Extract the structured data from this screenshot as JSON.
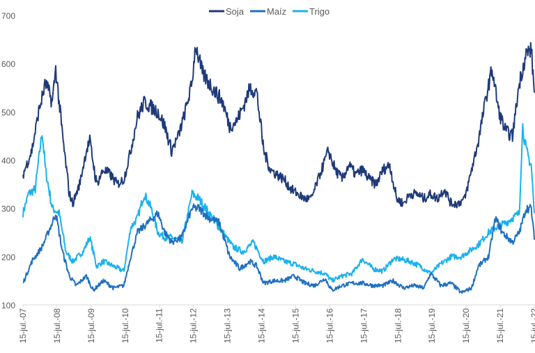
{
  "chart_data": {
    "type": "line",
    "title": "",
    "xlabel": "",
    "ylabel": "",
    "ylim": [
      100,
      700
    ],
    "yticks": [
      "100",
      "200",
      "300",
      "400",
      "500",
      "600",
      "700"
    ],
    "xlim": [
      2007.54,
      2022.54
    ],
    "xtick_labels": [
      "15-jul.-07",
      "15-jul.-08",
      "15-jul.-09",
      "15-jul.-10",
      "15-jul.-11",
      "15-jul.-12",
      "15-jul.-13",
      "15-jul.-14",
      "15-jul.-15",
      "15-jul.-16",
      "15-jul.-17",
      "15-jul.-18",
      "15-jul.-19",
      "15-jul.-20",
      "15-jul.-21",
      "15-jul.-22"
    ],
    "legend_position": "top-center",
    "series": [
      {
        "name": "Soja",
        "color": "#1f3a7a",
        "x": [
          2007.54,
          2007.8,
          2008.0,
          2008.2,
          2008.4,
          2008.5,
          2008.7,
          2008.9,
          2009.0,
          2009.2,
          2009.4,
          2009.5,
          2009.7,
          2009.9,
          2010.1,
          2010.3,
          2010.5,
          2010.7,
          2010.9,
          2011.1,
          2011.3,
          2011.5,
          2011.7,
          2011.9,
          2012.1,
          2012.3,
          2012.5,
          2012.6,
          2012.8,
          2013.0,
          2013.2,
          2013.4,
          2013.6,
          2013.8,
          2014.0,
          2014.2,
          2014.4,
          2014.6,
          2014.8,
          2015.0,
          2015.2,
          2015.4,
          2015.6,
          2015.8,
          2016.0,
          2016.3,
          2016.5,
          2016.7,
          2016.9,
          2017.1,
          2017.3,
          2017.5,
          2017.7,
          2017.9,
          2018.1,
          2018.3,
          2018.5,
          2018.7,
          2018.9,
          2019.1,
          2019.3,
          2019.5,
          2019.7,
          2019.9,
          2020.1,
          2020.3,
          2020.5,
          2020.7,
          2020.9,
          2021.1,
          2021.3,
          2021.5,
          2021.7,
          2021.9,
          2022.1,
          2022.3,
          2022.45,
          2022.54
        ],
        "values": [
          370,
          420,
          500,
          560,
          520,
          590,
          450,
          330,
          310,
          350,
          420,
          440,
          350,
          380,
          370,
          350,
          360,
          420,
          490,
          520,
          510,
          500,
          470,
          420,
          450,
          500,
          560,
          640,
          580,
          560,
          540,
          520,
          470,
          480,
          510,
          550,
          540,
          420,
          380,
          370,
          360,
          340,
          330,
          320,
          320,
          380,
          420,
          380,
          360,
          390,
          370,
          380,
          360,
          350,
          380,
          390,
          320,
          310,
          330,
          330,
          320,
          330,
          320,
          340,
          310,
          310,
          320,
          380,
          440,
          520,
          590,
          500,
          460,
          450,
          560,
          620,
          630,
          540
        ]
      },
      {
        "name": "Maíz",
        "color": "#1f6fc0",
        "x": [
          2007.54,
          2007.8,
          2008.1,
          2008.4,
          2008.5,
          2008.7,
          2008.9,
          2009.1,
          2009.4,
          2009.6,
          2009.9,
          2010.2,
          2010.5,
          2010.7,
          2010.9,
          2011.2,
          2011.5,
          2011.7,
          2011.9,
          2012.2,
          2012.5,
          2012.7,
          2013.0,
          2013.3,
          2013.6,
          2013.9,
          2014.2,
          2014.4,
          2014.6,
          2014.9,
          2015.2,
          2015.5,
          2015.8,
          2016.1,
          2016.4,
          2016.6,
          2016.9,
          2017.2,
          2017.5,
          2017.8,
          2018.1,
          2018.4,
          2018.7,
          2019.0,
          2019.3,
          2019.5,
          2019.8,
          2020.1,
          2020.4,
          2020.7,
          2020.9,
          2021.2,
          2021.4,
          2021.6,
          2021.9,
          2022.1,
          2022.3,
          2022.45,
          2022.54
        ],
        "values": [
          145,
          190,
          220,
          270,
          290,
          210,
          160,
          140,
          160,
          130,
          150,
          135,
          140,
          200,
          250,
          270,
          290,
          250,
          230,
          240,
          300,
          300,
          280,
          270,
          200,
          175,
          190,
          180,
          145,
          150,
          150,
          160,
          145,
          140,
          155,
          130,
          140,
          145,
          145,
          140,
          140,
          150,
          135,
          140,
          135,
          165,
          140,
          145,
          125,
          135,
          180,
          200,
          280,
          250,
          230,
          250,
          300,
          300,
          235
        ]
      },
      {
        "name": "Trigo",
        "color": "#19b2ee",
        "x": [
          2007.54,
          2007.7,
          2007.9,
          2008.1,
          2008.2,
          2008.4,
          2008.6,
          2008.8,
          2009.0,
          2009.3,
          2009.5,
          2009.7,
          2009.9,
          2010.2,
          2010.5,
          2010.7,
          2010.9,
          2011.1,
          2011.3,
          2011.5,
          2011.7,
          2011.9,
          2012.2,
          2012.5,
          2012.7,
          2012.9,
          2013.2,
          2013.5,
          2013.7,
          2014.0,
          2014.3,
          2014.6,
          2014.9,
          2015.2,
          2015.5,
          2015.8,
          2016.1,
          2016.4,
          2016.6,
          2016.9,
          2017.2,
          2017.5,
          2017.8,
          2018.1,
          2018.4,
          2018.6,
          2018.9,
          2019.2,
          2019.5,
          2019.8,
          2020.1,
          2020.4,
          2020.7,
          2020.9,
          2021.2,
          2021.4,
          2021.7,
          2021.9,
          2022.1,
          2022.2,
          2022.3,
          2022.45,
          2022.54
        ],
        "values": [
          290,
          330,
          340,
          460,
          380,
          300,
          290,
          210,
          190,
          210,
          240,
          180,
          190,
          180,
          170,
          260,
          280,
          330,
          300,
          250,
          240,
          240,
          230,
          330,
          320,
          300,
          270,
          240,
          220,
          210,
          230,
          190,
          200,
          190,
          185,
          175,
          170,
          165,
          150,
          160,
          165,
          195,
          175,
          170,
          195,
          195,
          190,
          180,
          165,
          185,
          200,
          200,
          215,
          225,
          250,
          260,
          270,
          280,
          290,
          470,
          420,
          390,
          290
        ]
      }
    ]
  }
}
